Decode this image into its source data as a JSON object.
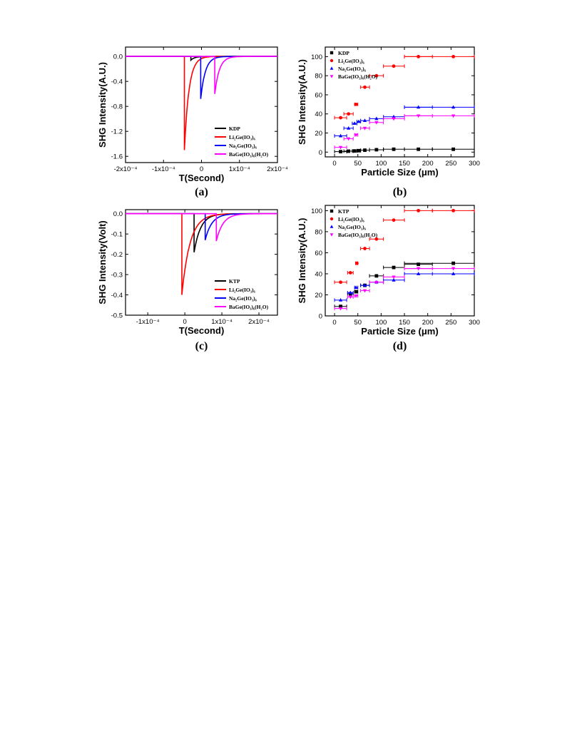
{
  "chart_data": [
    {
      "id": "a",
      "type": "line",
      "panel_label": "(a)",
      "xlabel": "T(Second)",
      "ylabel": "SHG Intensity(A.U.)",
      "xlim": [
        -0.0002,
        0.0002
      ],
      "ylim": [
        -1.7,
        0.15
      ],
      "xticks": [
        -0.0002,
        -0.0001,
        0,
        0.0001,
        0.0002
      ],
      "xtick_labels": [
        "-2x10⁻⁴",
        "-1x10⁻⁴",
        "0",
        "1x10⁻⁴",
        "2x10⁻⁴"
      ],
      "yticks": [
        0.0,
        -0.4,
        -0.8,
        -1.2,
        -1.6
      ],
      "ytick_labels": [
        "0.0",
        "-0.4",
        "-0.8",
        "-1.2",
        "-1.6"
      ],
      "legend_position": "bottom-right",
      "series": [
        {
          "name": "KDP",
          "color": "#000000",
          "t0": -2.8e-05,
          "amp": -0.06,
          "tau": 1e-05
        },
        {
          "name": "Li₂Ge(IO₃)₆",
          "color": "#ff0000",
          "t0": -4.5e-05,
          "amp": -1.5,
          "tau": 1.2e-05
        },
        {
          "name": "Na₂Ge(IO₃)₆",
          "color": "#0000ff",
          "t0": -2e-06,
          "amp": -0.68,
          "tau": 1.2e-05
        },
        {
          "name": "BaGe(IO₃)₆(H₂O)",
          "color": "#ff00ff",
          "t0": 3.5e-05,
          "amp": -0.6,
          "tau": 1.2e-05
        }
      ]
    },
    {
      "id": "b",
      "type": "scatter",
      "panel_label": "(b)",
      "xlabel": "Particle Size (μm)",
      "ylabel": "SHG Intensity(A.U.)",
      "xlim": [
        -20,
        300
      ],
      "ylim": [
        -5,
        110
      ],
      "xticks": [
        0,
        50,
        100,
        150,
        200,
        250,
        300
      ],
      "xtick_labels": [
        "0",
        "50",
        "100",
        "150",
        "200",
        "250",
        "300"
      ],
      "yticks": [
        0,
        20,
        40,
        60,
        80,
        100
      ],
      "ytick_labels": [
        "0",
        "20",
        "40",
        "60",
        "80",
        "100"
      ],
      "legend_position": "top-left",
      "xerr": [
        [
          0,
          20
        ],
        [
          20,
          40
        ],
        [
          40,
          50
        ],
        [
          50,
          56
        ],
        [
          56,
          75
        ],
        [
          75,
          105
        ],
        [
          105,
          150
        ],
        [
          150,
          300
        ]
      ],
      "series": [
        {
          "name": "KDP",
          "color": "#000000",
          "marker": "square",
          "x": [
            13,
            30,
            43,
            52,
            65,
            90,
            127,
            180,
            255
          ],
          "values": [
            0.5,
            1,
            1.2,
            1.5,
            2,
            2.5,
            3,
            3,
            3
          ],
          "xerr_ranges": [
            [
              0,
              26
            ],
            [
              20,
              40
            ],
            [
              38,
              48
            ],
            [
              48,
              56
            ],
            [
              56,
              75
            ],
            [
              75,
              105
            ],
            [
              105,
              150
            ],
            [
              150,
              210
            ],
            [
              210,
              300
            ]
          ]
        },
        {
          "name": "Li₂Ge(IO₃)₆",
          "color": "#ff0000",
          "marker": "circle",
          "x": [
            13,
            30,
            46,
            65,
            90,
            127,
            180,
            255
          ],
          "values": [
            36,
            40,
            50,
            68,
            80,
            90,
            100,
            100
          ],
          "xerr_ranges": [
            [
              0,
              26
            ],
            [
              20,
              40
            ],
            [
              43,
              50
            ],
            [
              56,
              75
            ],
            [
              75,
              105
            ],
            [
              105,
              150
            ],
            [
              150,
              210
            ],
            [
              150,
              300
            ]
          ]
        },
        {
          "name": "Na₂Ge(IO₃)₆",
          "color": "#0000ff",
          "marker": "triangle-up",
          "x": [
            13,
            30,
            43,
            52,
            65,
            90,
            127,
            180,
            255
          ],
          "values": [
            17,
            25,
            30,
            32,
            33,
            35,
            37,
            47,
            47
          ],
          "xerr_ranges": [
            [
              0,
              26
            ],
            [
              20,
              40
            ],
            [
              38,
              48
            ],
            [
              48,
              56
            ],
            [
              56,
              75
            ],
            [
              75,
              105
            ],
            [
              105,
              150
            ],
            [
              150,
              210
            ],
            [
              150,
              300
            ]
          ]
        },
        {
          "name": "BaGe(IO₃)₆(H₂O)",
          "color": "#ff00ff",
          "marker": "triangle-down",
          "x": [
            13,
            30,
            46,
            65,
            90,
            127,
            180,
            255
          ],
          "values": [
            5,
            14,
            18,
            25,
            31,
            35,
            38,
            38
          ],
          "xerr_ranges": [
            [
              0,
              26
            ],
            [
              20,
              40
            ],
            [
              43,
              50
            ],
            [
              56,
              75
            ],
            [
              75,
              105
            ],
            [
              105,
              150
            ],
            [
              150,
              210
            ],
            [
              150,
              300
            ]
          ]
        }
      ]
    },
    {
      "id": "c",
      "type": "line",
      "panel_label": "(c)",
      "xlabel": "T(Second)",
      "ylabel": "SHG Intensity(Volt)",
      "xlim": [
        -0.00016,
        0.00025
      ],
      "ylim": [
        -0.5,
        0.02
      ],
      "xticks": [
        -0.0001,
        0,
        0.0001,
        0.0002
      ],
      "xtick_labels": [
        "-1x10⁻⁴",
        "0",
        "1x10⁻⁴",
        "2x10⁻⁴"
      ],
      "yticks": [
        0.0,
        -0.1,
        -0.2,
        -0.3,
        -0.4,
        -0.5
      ],
      "ytick_labels": [
        "0.0",
        "-0.1",
        "-0.2",
        "-0.3",
        "-0.4",
        "-0.5"
      ],
      "legend_position": "bottom-right",
      "series": [
        {
          "name": "KTP",
          "color": "#000000",
          "t0": 2.5e-05,
          "amp": -0.19,
          "tau": 1.8e-05
        },
        {
          "name": "Li₂Ge(IO₃)₆",
          "color": "#ff0000",
          "t0": -8e-06,
          "amp": -0.4,
          "tau": 2.2e-05
        },
        {
          "name": "Na₂Ge(IO₃)₆",
          "color": "#0000ff",
          "t0": 5.5e-05,
          "amp": -0.13,
          "tau": 1.8e-05
        },
        {
          "name": "BaGe(IO₃)₆(H₂O)",
          "color": "#ff00ff",
          "t0": 8.5e-05,
          "amp": -0.135,
          "tau": 1.8e-05
        }
      ]
    },
    {
      "id": "d",
      "type": "scatter",
      "panel_label": "(d)",
      "xlabel": "Particle Size (μm)",
      "ylabel": "SHG Intensity(A.U.)",
      "xlim": [
        -20,
        300
      ],
      "ylim": [
        0,
        105
      ],
      "xticks": [
        0,
        50,
        100,
        150,
        200,
        250,
        300
      ],
      "xtick_labels": [
        "0",
        "50",
        "100",
        "150",
        "200",
        "250",
        "300"
      ],
      "yticks": [
        0,
        20,
        40,
        60,
        80,
        100
      ],
      "ytick_labels": [
        "0",
        "20",
        "40",
        "60",
        "80",
        "100"
      ],
      "legend_position": "top-left",
      "series": [
        {
          "name": "KTP",
          "color": "#000000",
          "marker": "square",
          "x": [
            13,
            34,
            46,
            65,
            90,
            127,
            180,
            255
          ],
          "values": [
            9,
            21,
            23,
            29,
            38,
            46,
            49,
            50
          ],
          "xerr_ranges": [
            [
              0,
              26
            ],
            [
              28,
              40
            ],
            [
              43,
              50
            ],
            [
              56,
              75
            ],
            [
              75,
              105
            ],
            [
              105,
              150
            ],
            [
              150,
              210
            ],
            [
              150,
              300
            ]
          ]
        },
        {
          "name": "Li₂Ge(IO₃)₆",
          "color": "#ff0000",
          "marker": "circle",
          "x": [
            13,
            34,
            48,
            65,
            90,
            127,
            180,
            255
          ],
          "values": [
            32,
            41,
            50,
            64,
            73,
            91,
            100,
            100
          ],
          "xerr_ranges": [
            [
              0,
              26
            ],
            [
              28,
              40
            ],
            [
              45,
              50
            ],
            [
              56,
              75
            ],
            [
              75,
              105
            ],
            [
              105,
              150
            ],
            [
              150,
              210
            ],
            [
              210,
              300
            ]
          ]
        },
        {
          "name": "Na₂Ge(IO₃)₆",
          "color": "#0000ff",
          "marker": "triangle-up",
          "x": [
            13,
            34,
            46,
            65,
            90,
            127,
            180,
            255
          ],
          "values": [
            15,
            22,
            27,
            29,
            32,
            34,
            40,
            40
          ],
          "xerr_ranges": [
            [
              0,
              26
            ],
            [
              28,
              40
            ],
            [
              43,
              50
            ],
            [
              56,
              75
            ],
            [
              75,
              105
            ],
            [
              105,
              150
            ],
            [
              150,
              210
            ],
            [
              150,
              300
            ]
          ]
        },
        {
          "name": "BaGe(IO₃)₆(H₂O)",
          "color": "#ff00ff",
          "marker": "triangle-down",
          "x": [
            13,
            34,
            46,
            65,
            90,
            127,
            180,
            255
          ],
          "values": [
            7,
            18,
            19,
            24,
            32,
            37,
            45,
            45
          ],
          "xerr_ranges": [
            [
              0,
              26
            ],
            [
              28,
              40
            ],
            [
              43,
              50
            ],
            [
              56,
              75
            ],
            [
              75,
              105
            ],
            [
              105,
              150
            ],
            [
              150,
              210
            ],
            [
              150,
              300
            ]
          ]
        }
      ]
    }
  ]
}
